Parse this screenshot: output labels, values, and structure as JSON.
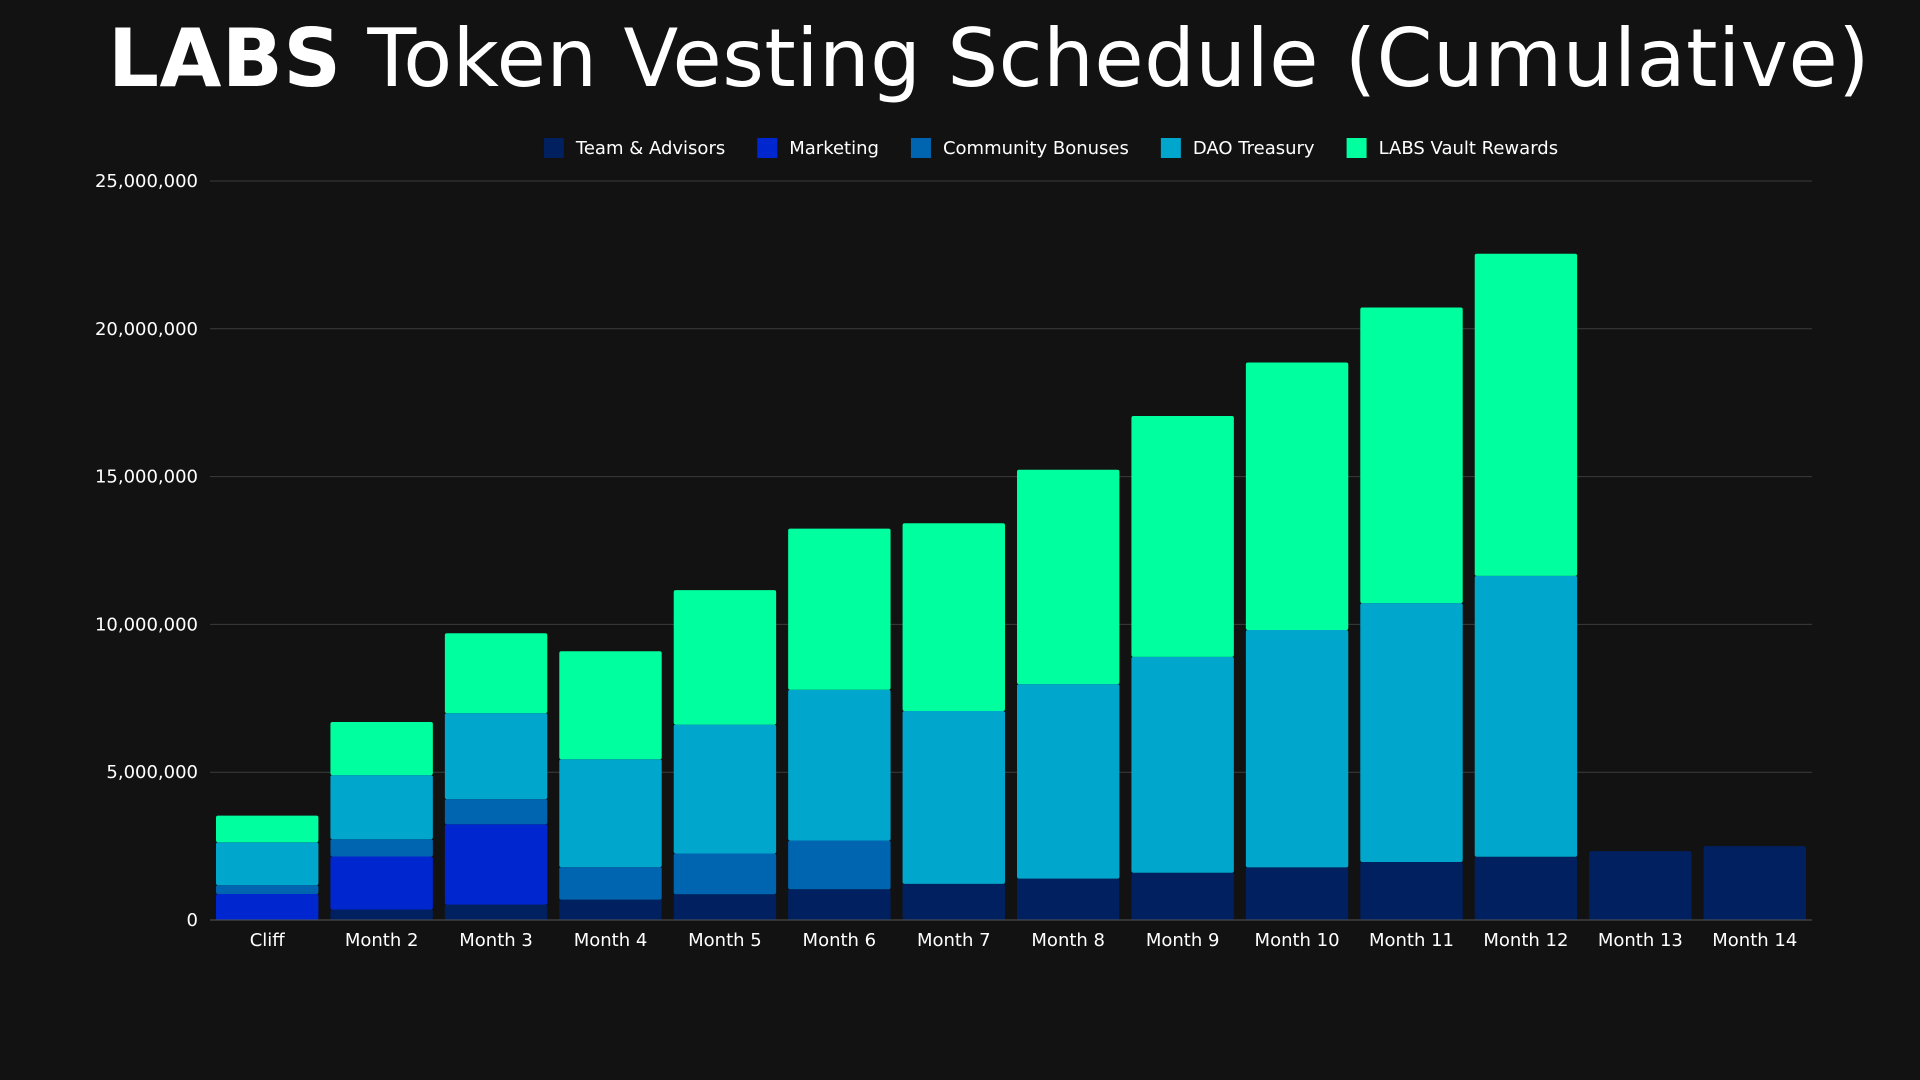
{
  "title": {
    "bold": "LABS",
    "rest": " Token Vesting Schedule (Cumulative)"
  },
  "chart_data": {
    "type": "bar",
    "stacked": true,
    "title": "LABS Token Vesting Schedule (Cumulative)",
    "xlabel": "",
    "ylabel": "",
    "ylim": [
      0,
      25000000
    ],
    "yticks": [
      0,
      5000000,
      10000000,
      15000000,
      20000000,
      25000000
    ],
    "ytick_labels": [
      "0",
      "5,000,000",
      "10,000,000",
      "15,000,000",
      "20,000,000",
      "25,000,000"
    ],
    "grid": true,
    "legend_position": "top",
    "categories": [
      "Cliff",
      "Month 2",
      "Month 3",
      "Month 4",
      "Month 5",
      "Month 6",
      "Month 7",
      "Month 8",
      "Month 9",
      "Month 10",
      "Month 11",
      "Month 12",
      "Month 13",
      "Month 14"
    ],
    "series": [
      {
        "name": "Team & Advisors",
        "color": "#00205f",
        "values": [
          0,
          350000,
          520000,
          690000,
          870000,
          1040000,
          1220000,
          1400000,
          1600000,
          1780000,
          1960000,
          2140000,
          2330000,
          2500000
        ]
      },
      {
        "name": "Marketing",
        "color": "#0026d0",
        "values": [
          880000,
          1800000,
          2720000,
          0,
          0,
          0,
          0,
          0,
          0,
          0,
          0,
          0,
          0,
          0
        ]
      },
      {
        "name": "Community Bonuses",
        "color": "#0065b0",
        "values": [
          300000,
          580000,
          850000,
          1100000,
          1380000,
          1650000,
          0,
          0,
          0,
          0,
          0,
          0,
          0,
          0
        ]
      },
      {
        "name": "DAO Treasury",
        "color": "#00a6cc",
        "values": [
          1450000,
          2170000,
          2910000,
          3650000,
          4360000,
          5100000,
          5850000,
          6580000,
          7300000,
          8030000,
          8760000,
          9500000,
          0,
          0
        ]
      },
      {
        "name": "LABS Vault Rewards",
        "color": "#00ff9f",
        "values": [
          900000,
          1800000,
          2700000,
          3650000,
          4550000,
          5450000,
          6350000,
          7250000,
          8150000,
          9050000,
          10000000,
          10900000,
          0,
          0
        ]
      }
    ]
  },
  "colors": {
    "background": "#121212",
    "grid": "#3c3c3c",
    "text": "#ffffff"
  }
}
